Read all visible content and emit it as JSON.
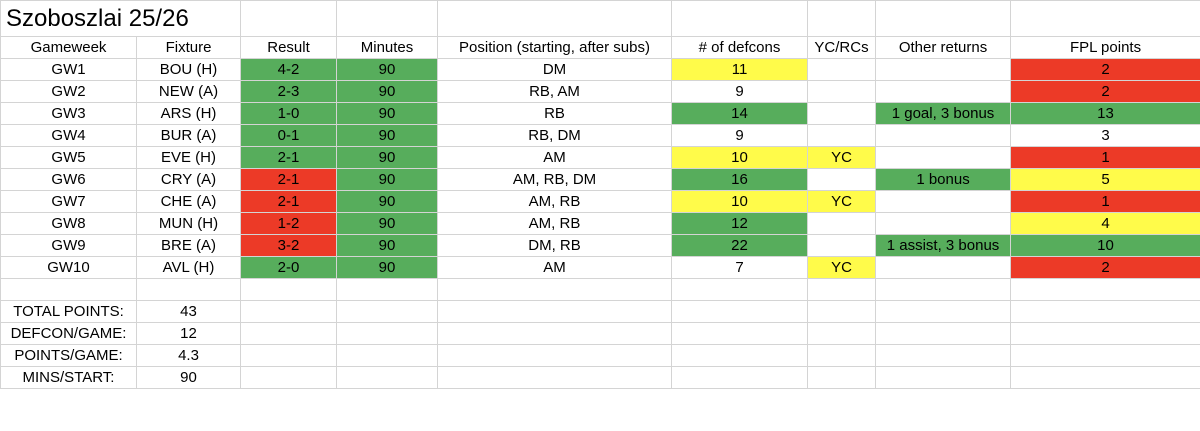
{
  "title": "Szoboszlai 25/26",
  "headers": [
    "Gameweek",
    "Fixture",
    "Result",
    "Minutes",
    "Position (starting, after subs)",
    "# of defcons",
    "YC/RCs",
    "Other returns",
    "FPL points"
  ],
  "rows": [
    {
      "gw": "GW1",
      "fixture": "BOU (H)",
      "result": "4-2",
      "minutes": "90",
      "position": "DM",
      "defcons": "11",
      "cards": "",
      "other": "",
      "points": "2"
    },
    {
      "gw": "GW2",
      "fixture": "NEW (A)",
      "result": "2-3",
      "minutes": "90",
      "position": "RB, AM",
      "defcons": "9",
      "cards": "",
      "other": "",
      "points": "2"
    },
    {
      "gw": "GW3",
      "fixture": "ARS (H)",
      "result": "1-0",
      "minutes": "90",
      "position": "RB",
      "defcons": "14",
      "cards": "",
      "other": "1 goal, 3 bonus",
      "points": "13"
    },
    {
      "gw": "GW4",
      "fixture": "BUR (A)",
      "result": "0-1",
      "minutes": "90",
      "position": "RB, DM",
      "defcons": "9",
      "cards": "",
      "other": "",
      "points": "3"
    },
    {
      "gw": "GW5",
      "fixture": "EVE (H)",
      "result": "2-1",
      "minutes": "90",
      "position": "AM",
      "defcons": "10",
      "cards": "YC",
      "other": "",
      "points": "1"
    },
    {
      "gw": "GW6",
      "fixture": "CRY (A)",
      "result": "2-1",
      "minutes": "90",
      "position": "AM, RB, DM",
      "defcons": "16",
      "cards": "",
      "other": "1 bonus",
      "points": "5"
    },
    {
      "gw": "GW7",
      "fixture": "CHE (A)",
      "result": "2-1",
      "minutes": "90",
      "position": "AM, RB",
      "defcons": "10",
      "cards": "YC",
      "other": "",
      "points": "1"
    },
    {
      "gw": "GW8",
      "fixture": "MUN (H)",
      "result": "1-2",
      "minutes": "90",
      "position": "AM, RB",
      "defcons": "12",
      "cards": "",
      "other": "",
      "points": "4"
    },
    {
      "gw": "GW9",
      "fixture": "BRE (A)",
      "result": "3-2",
      "minutes": "90",
      "position": "DM, RB",
      "defcons": "22",
      "cards": "",
      "other": "1 assist, 3 bonus",
      "points": "10"
    },
    {
      "gw": "GW10",
      "fixture": "AVL (H)",
      "result": "2-0",
      "minutes": "90",
      "position": "AM",
      "defcons": "7",
      "cards": "YC",
      "other": "",
      "points": "2"
    }
  ],
  "summary": [
    {
      "label": "TOTAL POINTS:",
      "value": "43"
    },
    {
      "label": "DEFCON/GAME:",
      "value": "12"
    },
    {
      "label": "POINTS/GAME:",
      "value": "4.3"
    },
    {
      "label": "MINS/START:",
      "value": "90"
    }
  ],
  "colors": {
    "green": "#57ad5c",
    "red": "#ec3a27",
    "yellow": "#fffb4a",
    "gridline": "#d4d4d4"
  }
}
